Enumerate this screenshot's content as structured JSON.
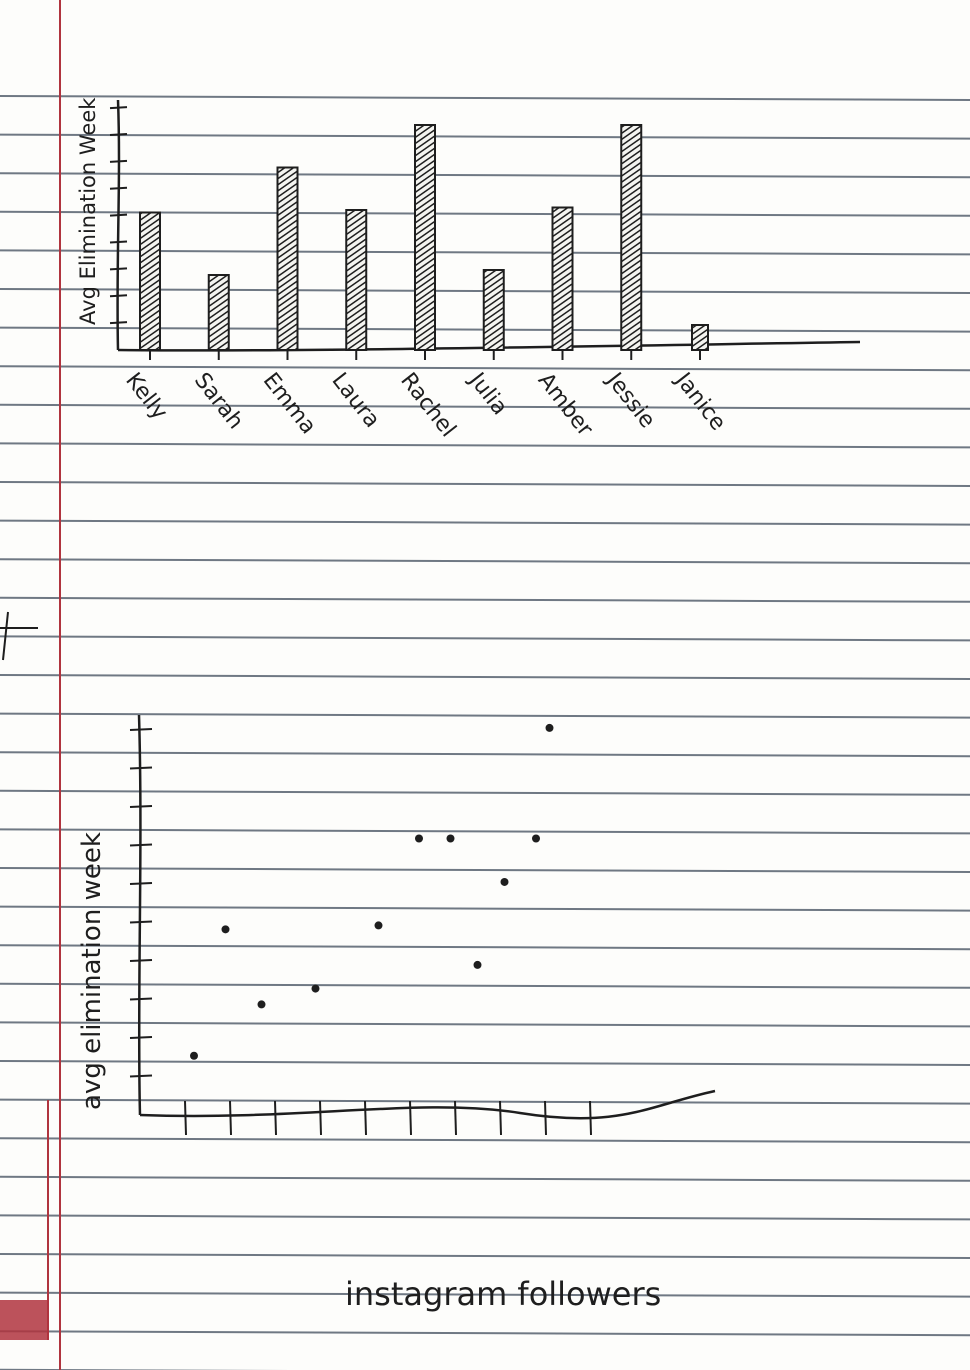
{
  "colors": {
    "paper": "#fdfdfb",
    "rule_line": "#4c5866",
    "margin_line": "#b0343e",
    "ink": "#1e1e1e"
  },
  "chart_data": [
    {
      "type": "bar",
      "title": "",
      "ylabel": "Avg Elimination Week",
      "xlabel": "",
      "categories": [
        "Kelly",
        "Sarah",
        "Emma",
        "Laura",
        "Rachel",
        "Julia",
        "Amber",
        "Jessie",
        "Janice"
      ],
      "values": [
        5.5,
        3,
        7.3,
        5.6,
        9,
        3.2,
        5.7,
        9,
        1
      ],
      "ylim": [
        0,
        10
      ],
      "yticks": 9,
      "grid": false,
      "fill": "hatched"
    },
    {
      "type": "scatter",
      "title": "",
      "ylabel": "avg elimination week",
      "xlabel": "instagram followers",
      "x": [
        1.2,
        1.9,
        2.7,
        3.9,
        5.3,
        6.2,
        6.9,
        7.5,
        8.1,
        8.8,
        9.1
      ],
      "y": [
        1.5,
        4.7,
        2.8,
        3.2,
        4.8,
        7,
        7,
        3.8,
        5.9,
        7,
        9.8
      ],
      "xlim": [
        0,
        10
      ],
      "ylim": [
        0,
        10
      ],
      "xticks": 10,
      "yticks": 10,
      "grid": false
    }
  ]
}
